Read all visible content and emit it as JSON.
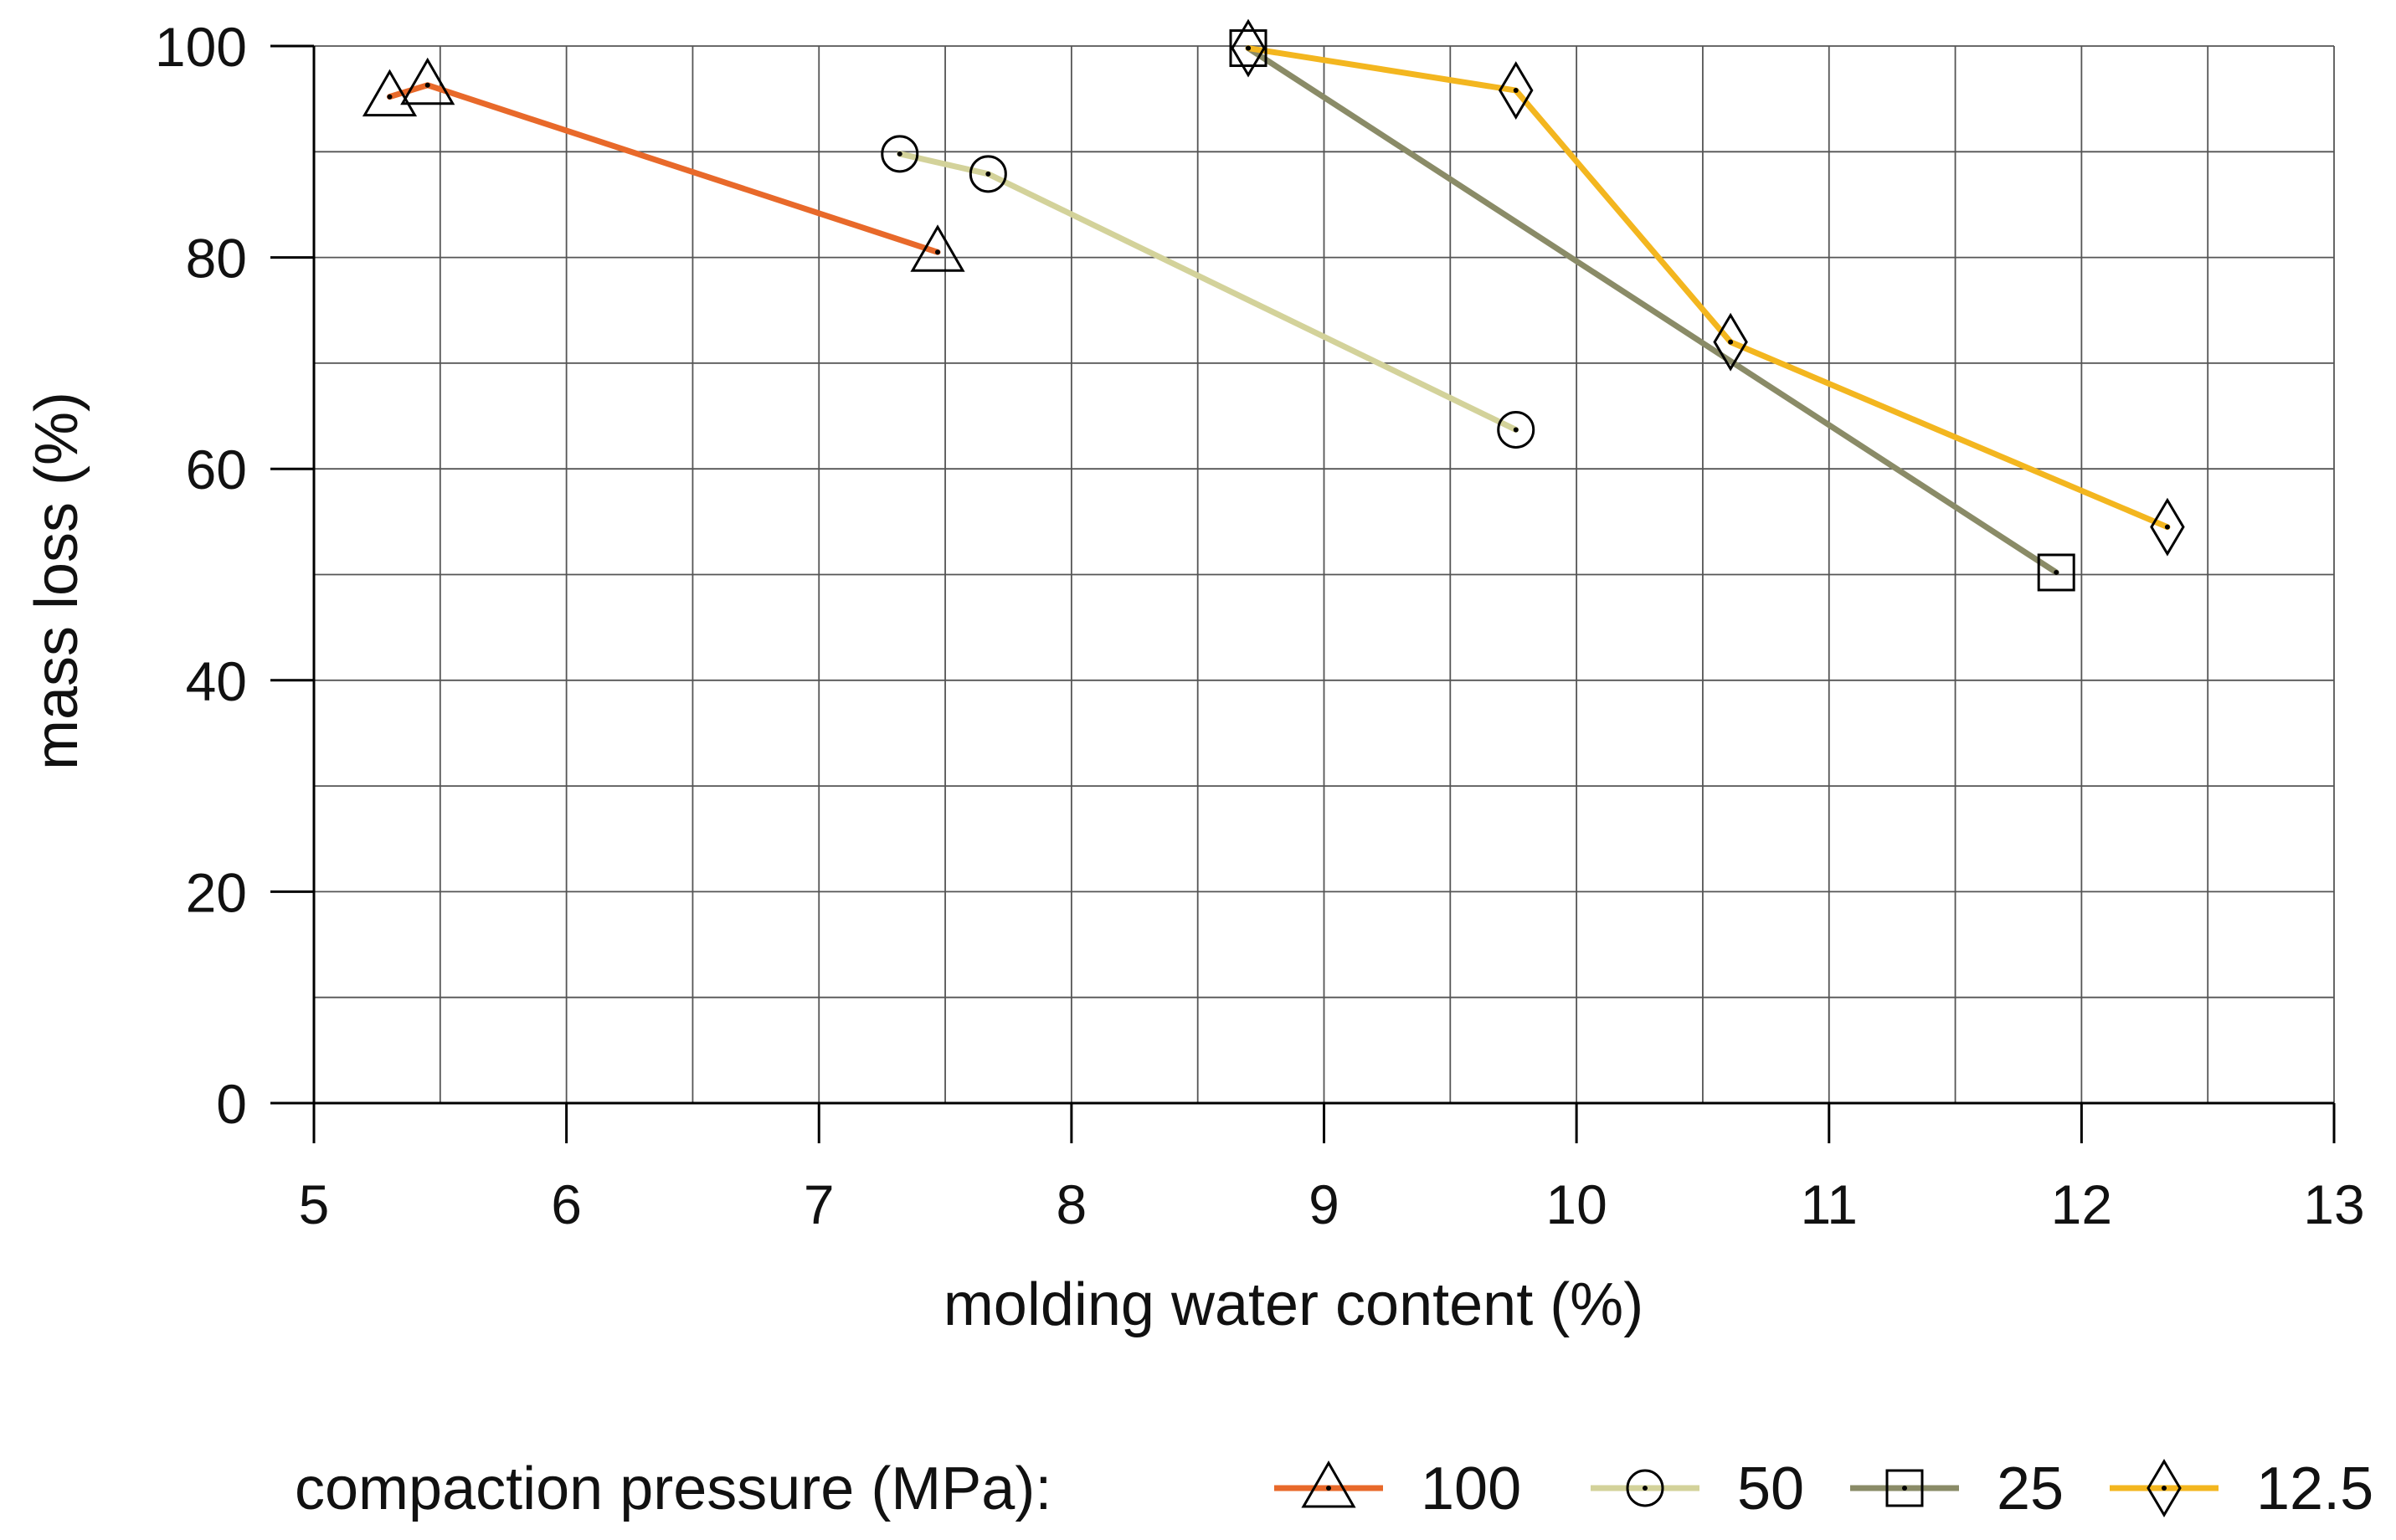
{
  "chart_data": {
    "type": "line",
    "title": "",
    "xlabel": "molding water content (%)",
    "ylabel": "mass loss (%)",
    "xlim": [
      5,
      13
    ],
    "ylim": [
      0,
      100
    ],
    "x_ticks": [
      5,
      6,
      7,
      8,
      9,
      10,
      11,
      12,
      13
    ],
    "y_ticks": [
      0,
      20,
      40,
      60,
      80,
      100
    ],
    "x_tick_labels": [
      "5",
      "6",
      "7",
      "8",
      "9",
      "10",
      "11",
      "12",
      "13"
    ],
    "y_tick_labels": [
      "0",
      "20",
      "40",
      "60",
      "80",
      "100"
    ],
    "grid": true,
    "legend_title": "compaction pressure (MPa):",
    "legend_position": "bottom",
    "series": [
      {
        "name": "100",
        "color": "#E8692A",
        "marker": "triangle",
        "x": [
          5.3,
          5.45,
          7.47
        ],
        "y": [
          95.2,
          96.3,
          80.5
        ]
      },
      {
        "name": "50",
        "color": "#D3D29A",
        "marker": "circle",
        "x": [
          7.32,
          7.67,
          9.76
        ],
        "y": [
          89.8,
          87.9,
          63.7
        ]
      },
      {
        "name": "25",
        "color": "#8A8B67",
        "marker": "square",
        "x": [
          8.7,
          11.9
        ],
        "y": [
          99.8,
          50.2
        ]
      },
      {
        "name": "12.5",
        "color": "#F3B61F",
        "marker": "diamond",
        "x": [
          8.7,
          9.76,
          10.61,
          12.34
        ],
        "y": [
          99.8,
          95.8,
          72.0,
          54.5
        ]
      }
    ]
  }
}
